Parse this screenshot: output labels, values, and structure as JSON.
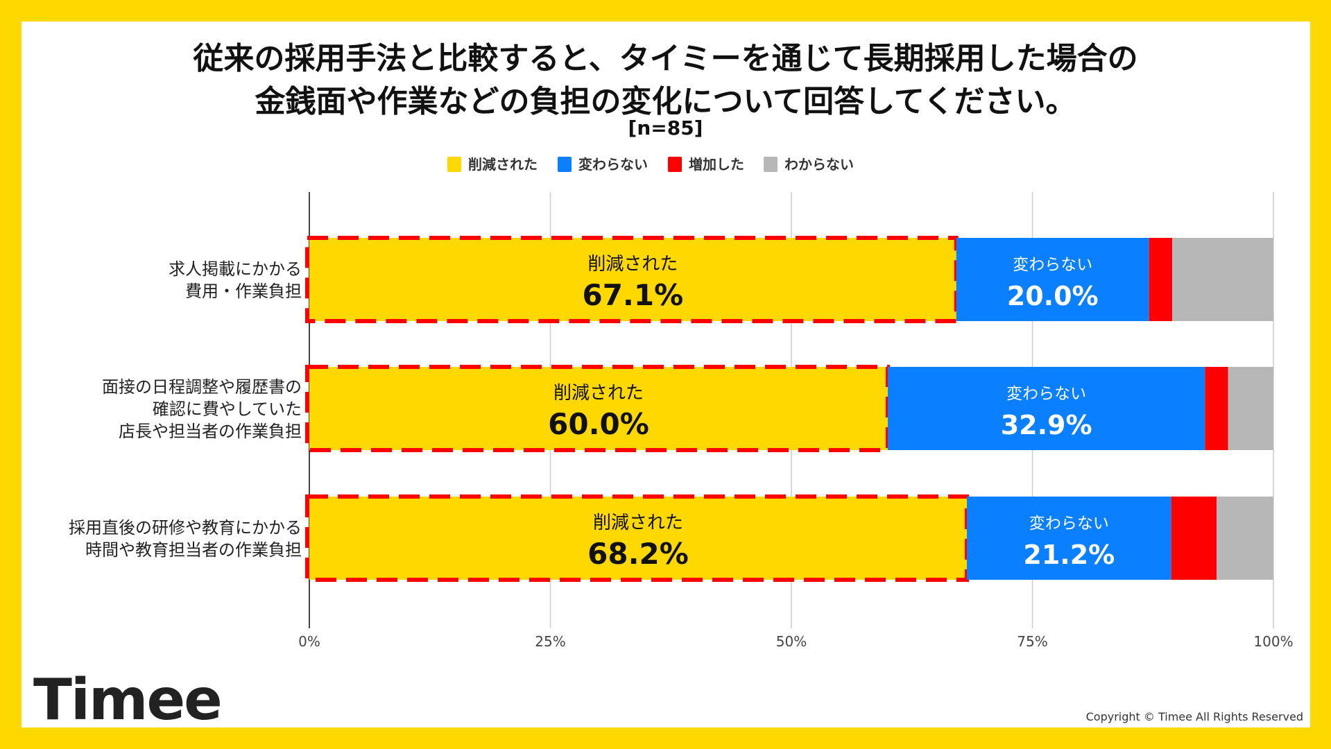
{
  "title_line1": "従来の採用手法と比較すると、タイミーを通じて長期採用した場合の",
  "title_line2": "金銭面や作業などの負担の変化について回答してください。",
  "sample": "[n=85]",
  "logo": "Timee",
  "copyright": "Copyright © Timee All Rights Reserved",
  "chart_data": {
    "type": "bar",
    "orientation": "horizontal",
    "stacked": true,
    "categories": [
      [
        "求人掲載にかかる",
        "費用・作業負担"
      ],
      [
        "面接の日程調整や履歴書の",
        "確認に費やしていた",
        "店長や担当者の作業負担"
      ],
      [
        "採用直後の研修や教育にかかる",
        "時間や教育担当者の作業負担"
      ]
    ],
    "series": [
      {
        "name": "削減された",
        "color": "#FFD800",
        "values": [
          67.1,
          60.0,
          68.2
        ],
        "labels": [
          "67.1%",
          "60.0%",
          "68.2%"
        ],
        "highlight": "red-dashed-outline"
      },
      {
        "name": "変わらない",
        "color": "#0A7FFF",
        "values": [
          20.0,
          32.9,
          21.2
        ],
        "labels": [
          "20.0%",
          "32.9%",
          "21.2%"
        ]
      },
      {
        "name": "増加した",
        "color": "#FF0000",
        "values": [
          2.4,
          2.4,
          4.7
        ]
      },
      {
        "name": "わからない",
        "color": "#B7B7B7",
        "values": [
          10.5,
          4.7,
          5.9
        ]
      }
    ],
    "xlim": [
      0,
      100
    ],
    "xticks": [
      "0%",
      "25%",
      "50%",
      "75%",
      "100%"
    ],
    "grid": true,
    "legend": "top-center"
  }
}
